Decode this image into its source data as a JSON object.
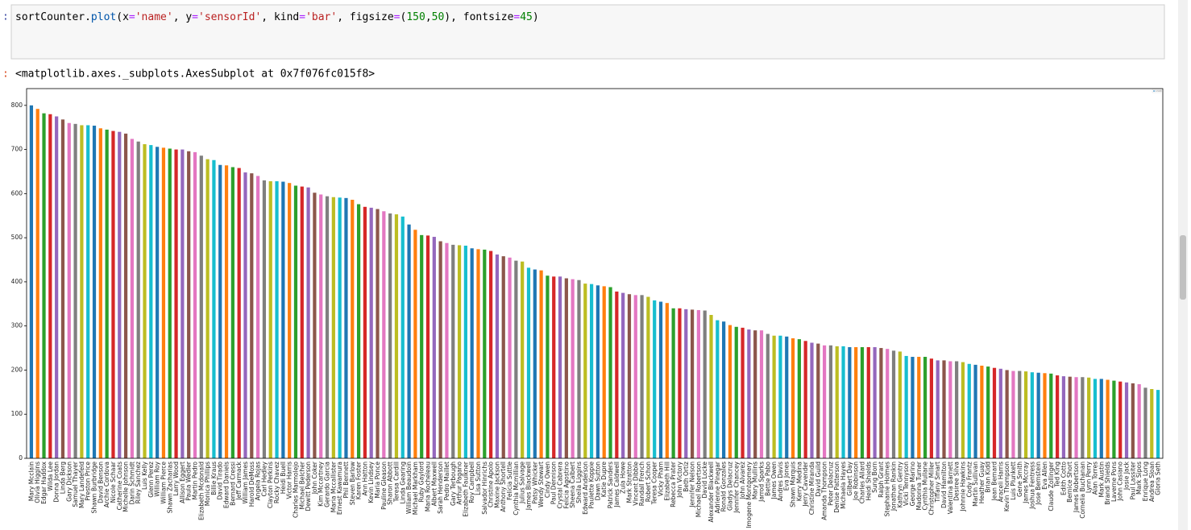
{
  "prompts": [
    ":",
    ":"
  ],
  "code": [
    "sortCounter",
    ".",
    "plot",
    "(",
    "x",
    "=",
    "'name'",
    ", ",
    "y",
    "=",
    "'sensorId'",
    ", ",
    "kind",
    "=",
    "'bar'",
    ", ",
    "figsize",
    "=",
    "(",
    "150",
    ",",
    "50",
    "), ",
    "fontsize",
    "=",
    "45",
    ")"
  ],
  "output": "<matplotlib.axes._subplots.AxesSubplot at 0x7f076fc015f8>",
  "chart_data": {
    "type": "bar",
    "categories": [
      "Mary Mcclain",
      "Olivia Higgins",
      "Edgar Haddox",
      "Wilda Lee",
      "Donna Jordan",
      "Linda Berg",
      "Gary Dickson",
      "Samuel Thayer",
      "Mary Landefeld",
      "Preston Price",
      "Shawn Burbridge",
      "David Benson",
      "Archie Cordova",
      "Nicole Schaar",
      "Catherine Coats",
      "Michelle Johnson",
      "Darin Schmidt",
      "Riley Sanchez",
      "Luis Kelly",
      "Glenn Perez",
      "William Roy",
      "William Pierce",
      "Shawn Zacharias",
      "Larry Wood",
      "Allison Eggert",
      "Paula Wedler",
      "Martin Pedro",
      "Elizabeth Mcdonald",
      "Monica Phillips",
      "Billie Kraus",
      "David Tirado",
      "Edward Daniels",
      "Bernard Cressi",
      "Jeff Carmack",
      "William James",
      "Harold DeMoss",
      "Angela Rojas",
      "Carl Hedley",
      "Clayton Perkins",
      "Rocky Chavez",
      "Heidi Buell",
      "Victor Harris",
      "Charles Marmolejo",
      "Michael Belcher",
      "Dewitt Pederson",
      "John Coker",
      "Kim Mccartney",
      "Gerardo Garcia",
      "Maria Mccallister",
      "Ernest Kawamura",
      "Phil Bennett",
      "Steven Barlow",
      "Karen Foster",
      "Ann Hatton",
      "Kevin Lindsey",
      "Maria Ponce",
      "Pauline Gleason",
      "Sharon Abbott",
      "Teresa Cardill",
      "Linda Gearing",
      "William Beaudoin",
      "Michael Markham",
      "Ruby Gaylord",
      "Maria Rocheleau",
      "Albert Maxwell",
      "Sarah Henderson",
      "Pedro Maillet",
      "Gary Terbough",
      "Arthur Pagano",
      "Elizabeth Faulkner",
      "Roy Campbell",
      "Lisa Sutton",
      "Salvador Hinrichs",
      "Christine Apolo",
      "Maxine Jackson",
      "Anthony Shortell",
      "Felicia Suttle",
      "Cynthia Mcmillian",
      "Julius Salvage",
      "James Blackwell",
      "Patsy Whicker",
      "Wendy Stewart",
      "Cindy Owen",
      "Paul Dennison",
      "Crystal Cabrera",
      "Felicia Agostino",
      "Sheena Calbert",
      "Sheila Liggins",
      "Edward Anderson",
      "Paulette Koppie",
      "Dawn Sutton",
      "Katie Dupre",
      "Patrick Sanders",
      "James Caldwell",
      "Zula Howe",
      "Mark Stratton",
      "Vincent Dibble",
      "Randall French",
      "Robert Schon",
      "Teresa Cooper",
      "Vicky Pham",
      "Elizabeth Hill",
      "Rebecca Prater",
      "John Victory",
      "Beth Ortiz",
      "Jennifer Nelson",
      "Michael Robertson",
      "David Locke",
      "Alexander Blackwell",
      "Adrienne Pinegar",
      "Ronald Gonzales",
      "Gladys Delacruz",
      "Jennifer Chancey",
      "John Alvarez",
      "Imogene Montgomery",
      "Mary Mullins",
      "Jarrod Sparks",
      "Bettie Pabo",
      "James Owen",
      "Andres Davis",
      "Eva Jones",
      "Shawn Marquis",
      "Kerry Medina",
      "Jerry Cavender",
      "Christine Miranda",
      "David Guild",
      "Amanda Thompson",
      "Peter Delacruz",
      "Denise Patterson",
      "Michaela Hayes",
      "Gilbert Day",
      "Joe Robinson",
      "Charles Allard",
      "Heidi Shields",
      "Sung Born",
      "Ralph Grant",
      "Stephanie Holmes",
      "Jonathan Rankin",
      "Kathryn Gentry",
      "Vicki Tennyson",
      "George Marino",
      "Madonna Turner",
      "Cynthia Mullane",
      "Christopher Miller",
      "Tiffany Smart",
      "David Hamilton",
      "Valentina Barnett",
      "Desiree Silva",
      "Johnnie Hawkins",
      "Cody Frantz",
      "Martin Sullivan",
      "Heather Guay",
      "Brian Kidd",
      "Jean Bernard",
      "Araceli Harris",
      "Kevin Thompson",
      "Luis Plunkett",
      "Gene Smith",
      "James Mccray",
      "Joshua Fentress",
      "Jose Bernstein",
      "Eva Allen",
      "Claude Zollinger",
      "Ted King",
      "Edith Cotto",
      "Bernice Short",
      "James Robertson",
      "Cornelia Buchanan",
      "Lynn Perry",
      "Alan Torres",
      "Mark Austin",
      "Brandi Shields",
      "Laverne Pons",
      "John Casiano",
      "Josie Jack",
      "Paul Lassiter",
      "Mark Sipos",
      "Enrique Long",
      "Andrea Sloan",
      "Gloria Seth"
    ],
    "series": [
      {
        "name": "sensorId",
        "values": [
          800,
          792,
          782,
          780,
          775,
          768,
          760,
          758,
          755,
          755,
          754,
          748,
          745,
          742,
          740,
          736,
          724,
          718,
          712,
          710,
          706,
          704,
          702,
          700,
          700,
          696,
          694,
          686,
          678,
          676,
          665,
          664,
          660,
          658,
          648,
          646,
          640,
          630,
          628,
          628,
          627,
          624,
          618,
          616,
          614,
          602,
          598,
          594,
          592,
          591,
          590,
          586,
          576,
          570,
          568,
          565,
          560,
          555,
          553,
          548,
          530,
          518,
          506,
          505,
          502,
          492,
          488,
          484,
          483,
          482,
          476,
          474,
          473,
          470,
          462,
          458,
          455,
          448,
          446,
          432,
          428,
          426,
          414,
          412,
          412,
          408,
          406,
          404,
          396,
          395,
          392,
          390,
          388,
          378,
          375,
          372,
          370,
          370,
          366,
          358,
          355,
          352,
          340,
          340,
          338,
          337,
          336,
          335,
          325,
          313,
          310,
          302,
          298,
          296,
          292,
          290,
          290,
          282,
          278,
          278,
          276,
          272,
          270,
          266,
          262,
          260,
          256,
          256,
          254,
          254,
          252,
          252,
          252,
          252,
          252,
          250,
          248,
          244,
          242,
          232,
          230,
          230,
          230,
          226,
          222,
          222,
          220,
          220,
          218,
          214,
          212,
          210,
          208,
          205,
          203,
          200,
          198,
          198,
          197,
          195,
          194,
          193,
          192,
          188,
          186,
          185,
          184,
          184,
          183,
          180,
          180,
          178,
          176,
          174,
          172,
          170,
          168,
          160,
          157,
          155
        ]
      }
    ],
    "colors": [
      "#1f77b4",
      "#ff7f0e",
      "#2ca02c",
      "#d62728",
      "#9467bd",
      "#8c564b",
      "#e377c2",
      "#7f7f7f",
      "#bcbd22",
      "#17becf"
    ],
    "ylim": [
      0,
      838
    ],
    "yticks": [
      0,
      100,
      200,
      300,
      400,
      500,
      600,
      700,
      800
    ]
  }
}
